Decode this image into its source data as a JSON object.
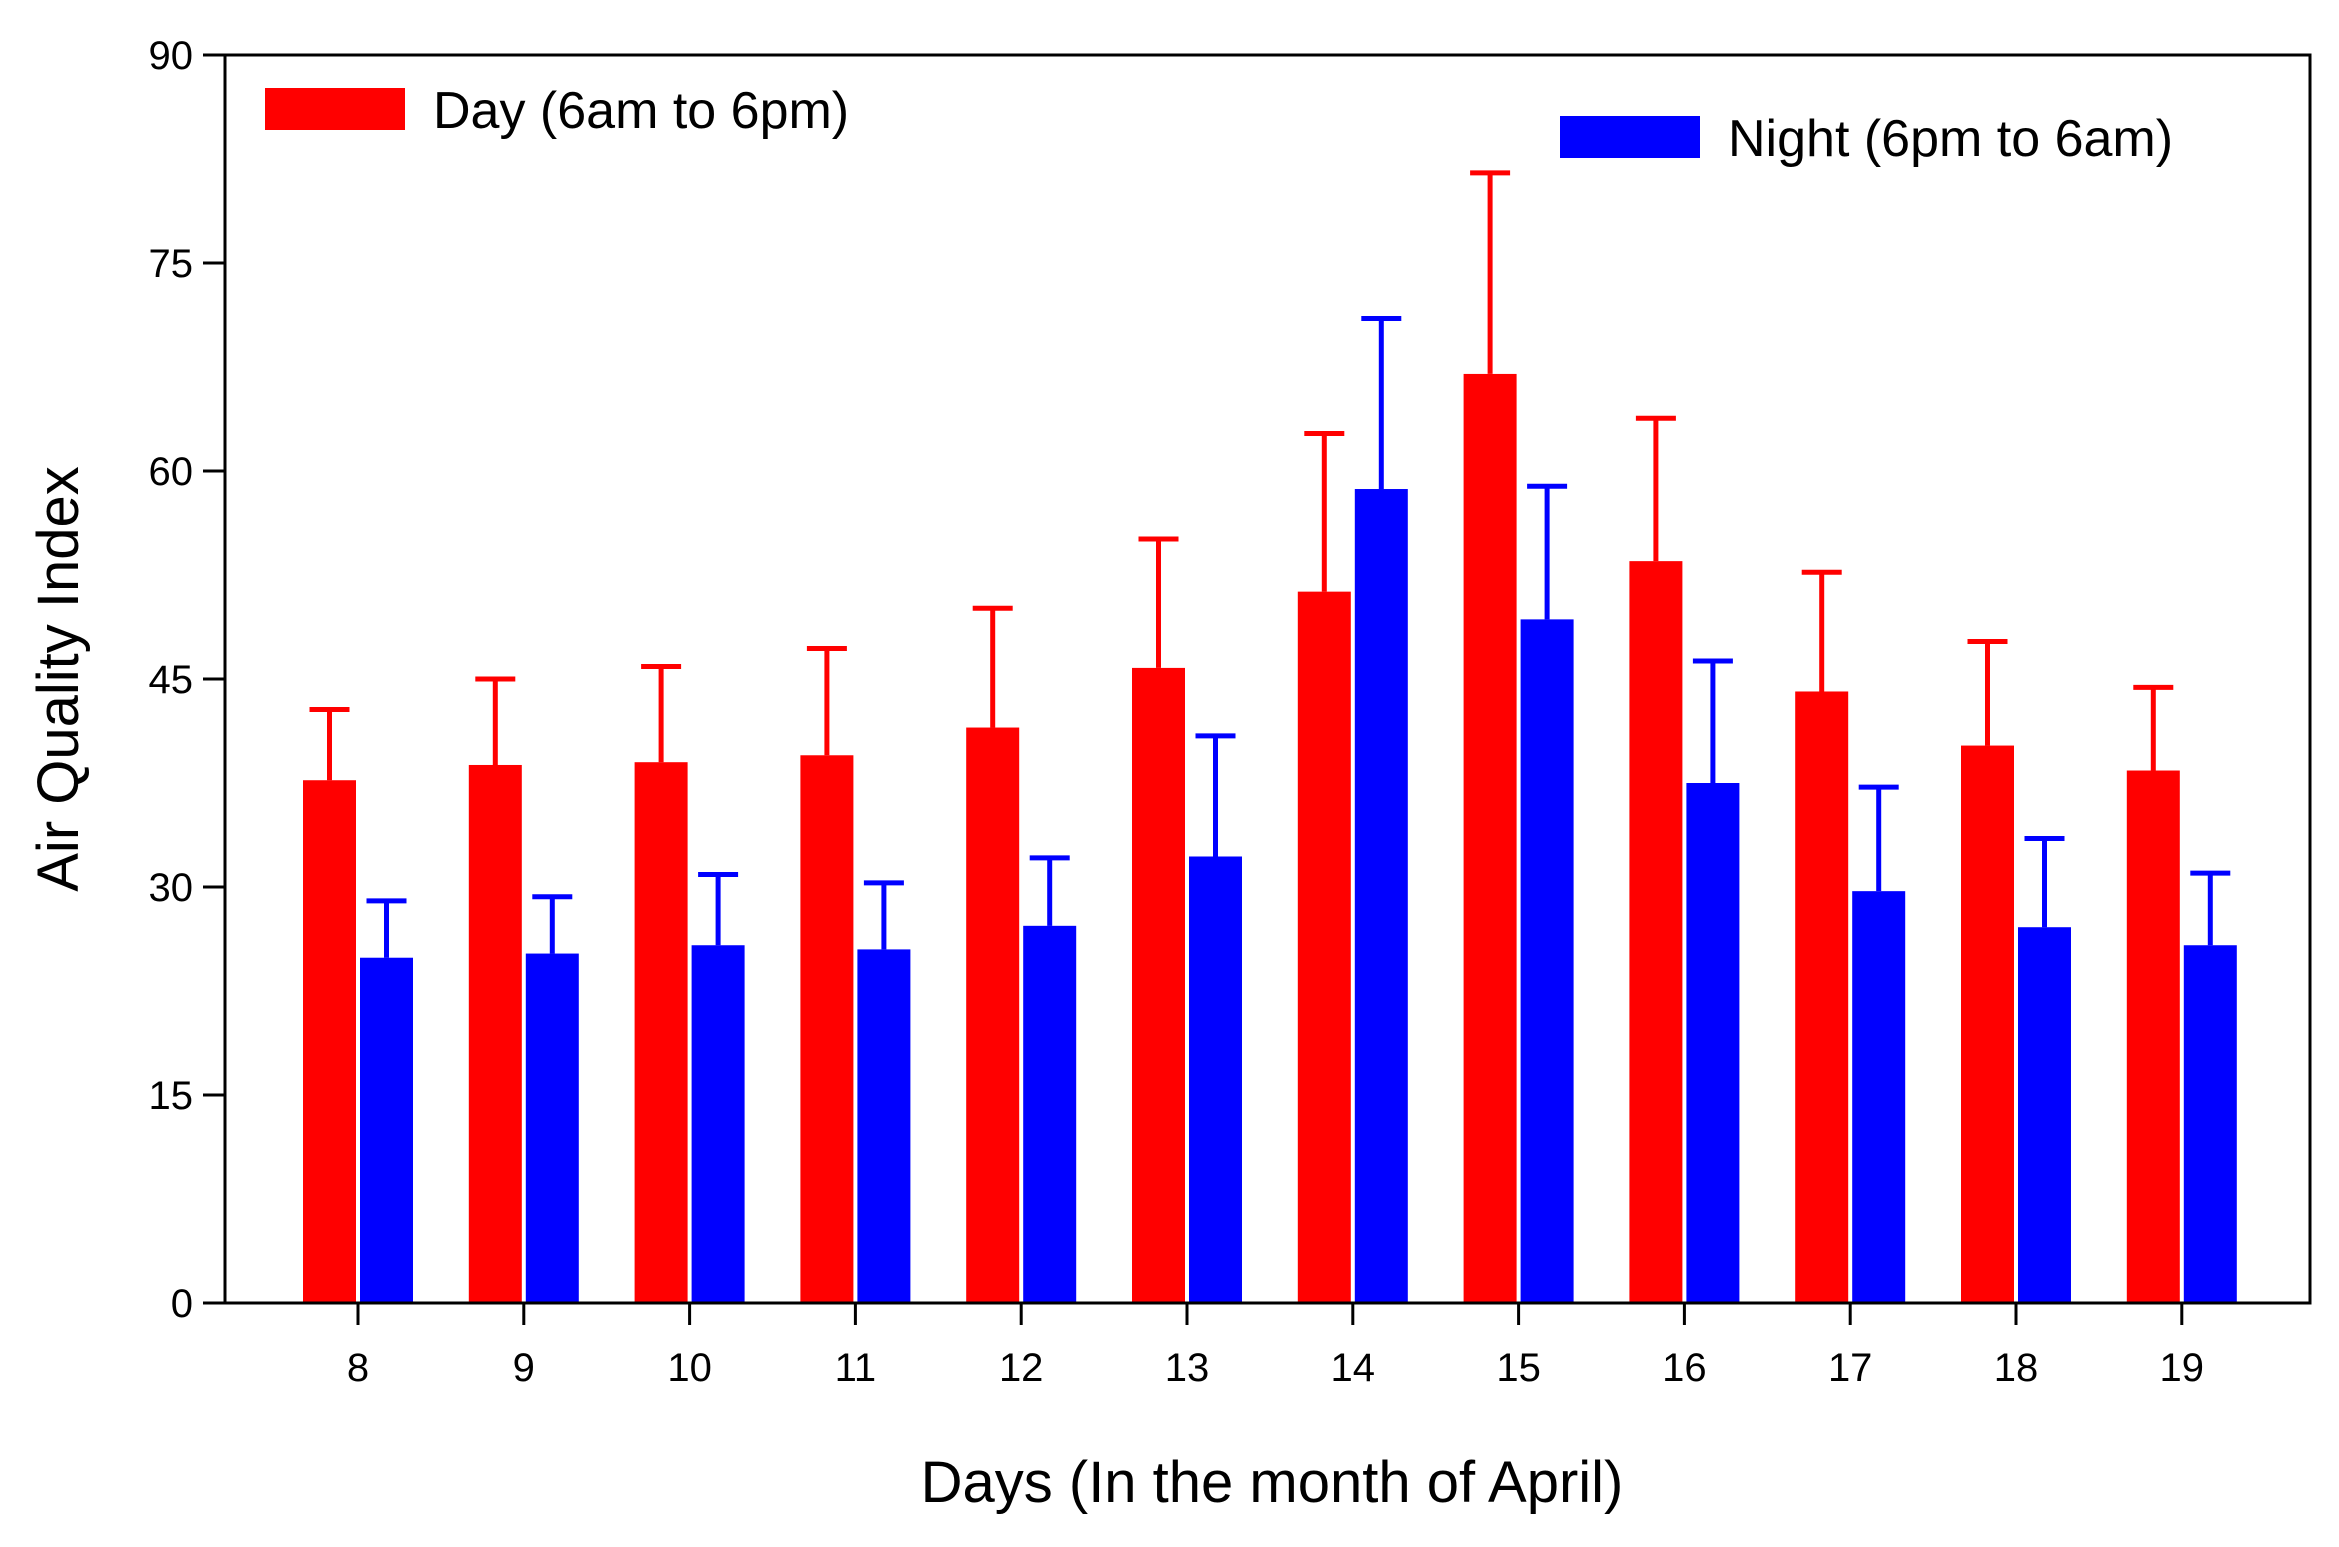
{
  "chart_data": {
    "type": "bar",
    "title": "",
    "xlabel": "Days (In the month of April)",
    "ylabel": "Air Quality Index",
    "ylim": [
      0,
      90
    ],
    "yticks": [
      "0",
      "15",
      "30",
      "45",
      "60",
      "75",
      "90"
    ],
    "grid": false,
    "legend_position": "top",
    "categories": [
      "8",
      "9",
      "10",
      "11",
      "12",
      "13",
      "14",
      "15",
      "16",
      "17",
      "18",
      "19"
    ],
    "series": [
      {
        "name": "Day (6am to 6pm)",
        "color": "#ff0000",
        "values": [
          37.7,
          38.8,
          39.0,
          39.5,
          41.5,
          45.8,
          51.3,
          67.0,
          53.5,
          44.1,
          40.2,
          38.4
        ],
        "error_upper": [
          42.8,
          45.0,
          45.9,
          47.2,
          50.1,
          55.1,
          62.7,
          81.5,
          63.8,
          52.7,
          47.7,
          44.4
        ]
      },
      {
        "name": "Night (6pm to 6am)",
        "color": "#0000ff",
        "values": [
          24.9,
          25.2,
          25.8,
          25.5,
          27.2,
          32.2,
          58.7,
          49.3,
          37.5,
          29.7,
          27.1,
          25.8
        ],
        "error_upper": [
          29.0,
          29.3,
          30.9,
          30.3,
          32.1,
          40.9,
          71.0,
          58.9,
          46.3,
          37.2,
          33.5,
          31.0
        ]
      }
    ]
  }
}
